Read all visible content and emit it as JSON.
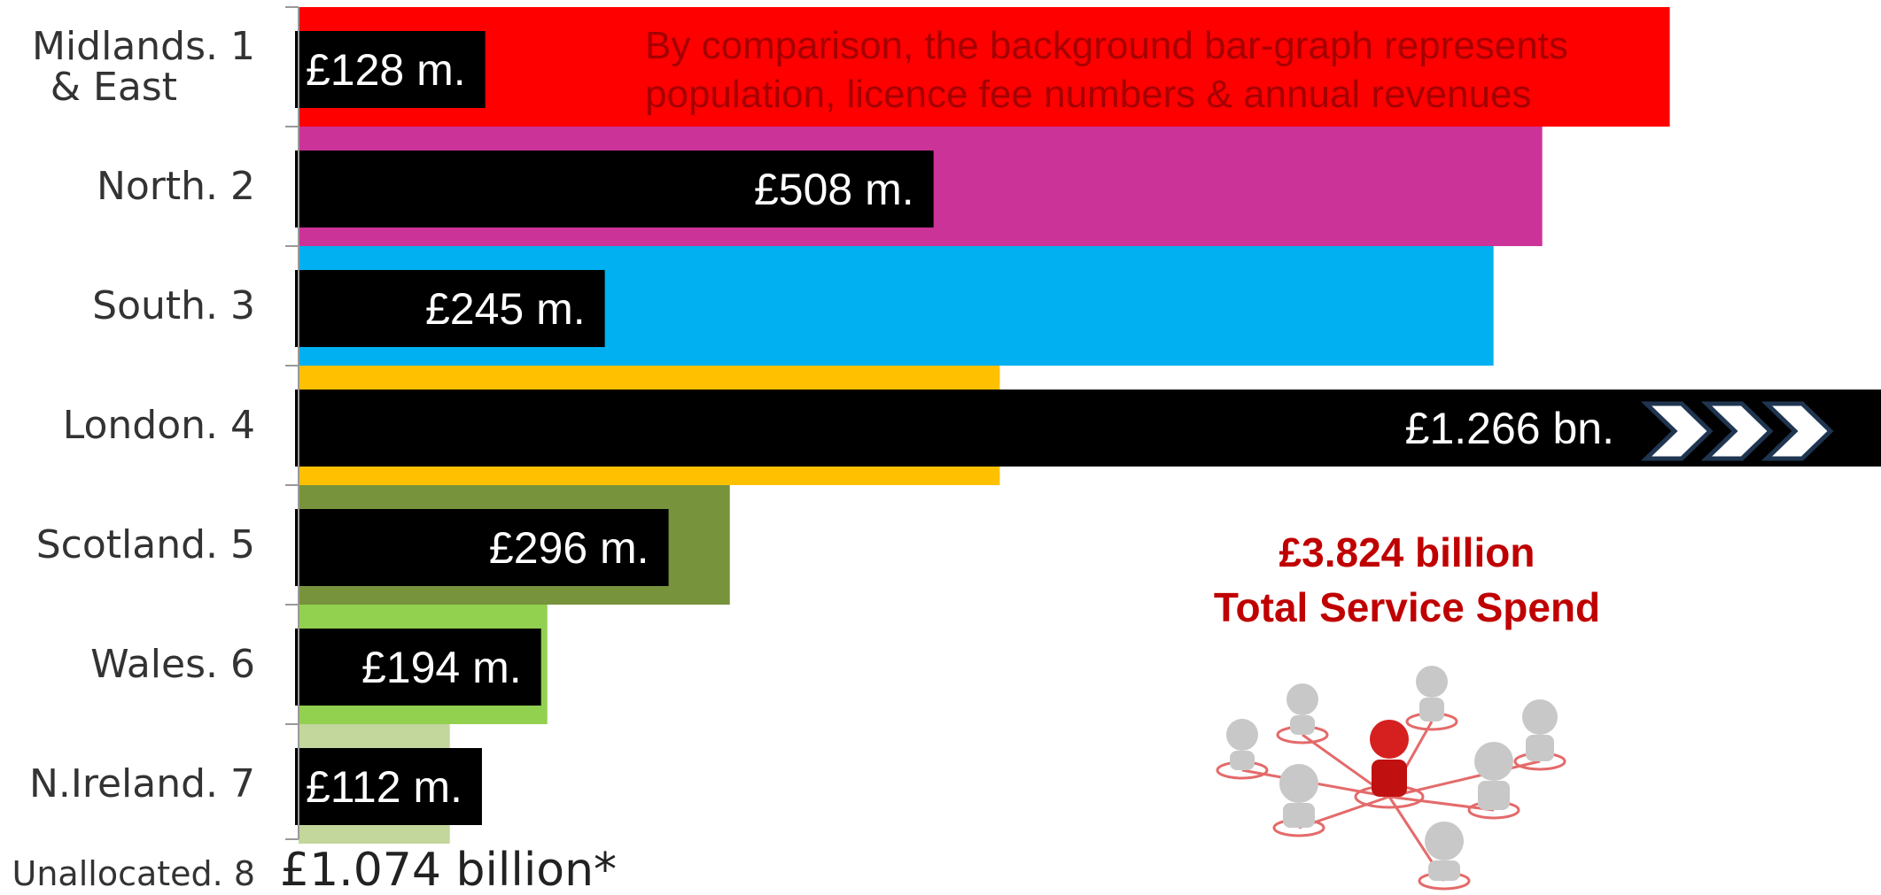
{
  "chart_data": {
    "type": "bar",
    "categories": [
      "Midlands. 1\n& East",
      "North. 2",
      "South. 3",
      "London. 4",
      "Scotland. 5",
      "Wales. 6",
      "N.Ireland. 7"
    ],
    "values": [
      128,
      508,
      245,
      1266,
      296,
      194,
      112
    ],
    "value_labels": [
      "£128 m.",
      "£508 m.",
      "£245 m.",
      "£1.266 bn.",
      "£296 m.",
      "£194 m.",
      "£112 m."
    ],
    "color": "#000000",
    "background_values": [
      1097,
      995,
      956,
      561,
      345,
      199,
      121
    ],
    "background_colors": [
      "#ff0000",
      "#cc3399",
      "#00b0f0",
      "#ffc000",
      "#77933c",
      "#92d050",
      "#c3d69b"
    ],
    "annotation": [
      "By comparison, the background bar-graph represents",
      "population, licence fee numbers & annual revenues"
    ],
    "total": [
      "£3.824 billion",
      "Total Service Spend"
    ],
    "unallocated": {
      "label": "Unallocated. 8",
      "value_label": "£1.074 billion*"
    }
  }
}
